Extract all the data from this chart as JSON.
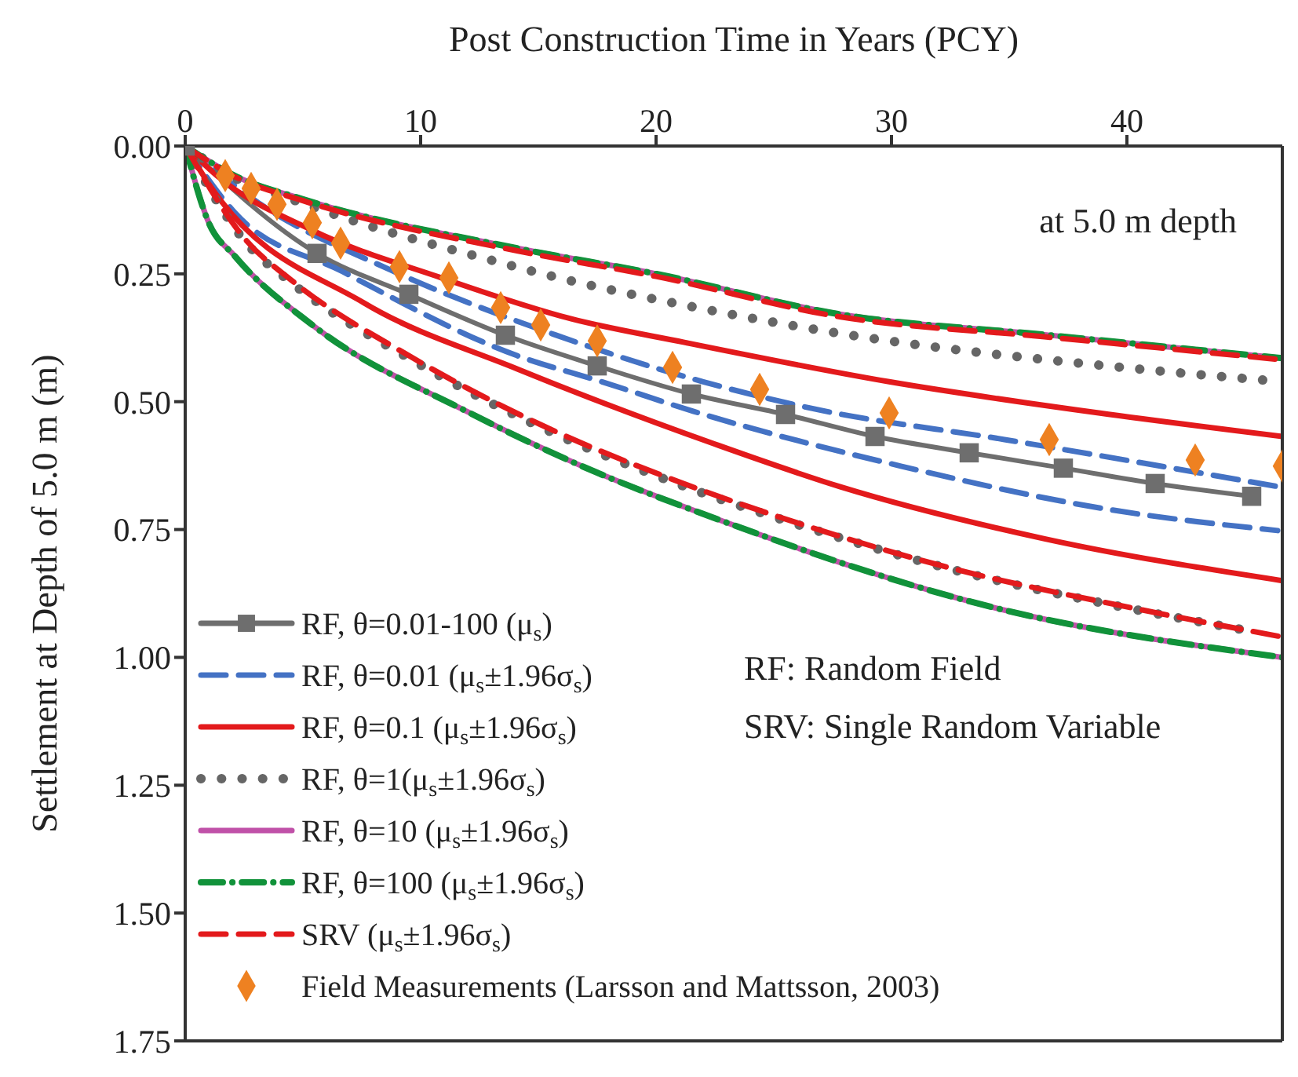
{
  "chart_data": {
    "type": "line",
    "xlabel": "Post Construction Time in Years (PCY)",
    "ylabel": "Settlement at Depth of 5.0 m  (m)",
    "xlim": [
      0,
      46.6
    ],
    "xticks": [
      0,
      10,
      20,
      30,
      40
    ],
    "ylim": [
      1.75,
      0
    ],
    "yticks": [
      {
        "value": 0,
        "label": "0.00"
      },
      {
        "value": 0.25,
        "label": "0.25"
      },
      {
        "value": 0.5,
        "label": "0.50"
      },
      {
        "value": 0.75,
        "label": "0.75"
      },
      {
        "value": 1,
        "label": "1.00"
      },
      {
        "value": 1.25,
        "label": "1.25"
      },
      {
        "value": 1.5,
        "label": "1.50"
      },
      {
        "value": 1.75,
        "label": "1.75"
      }
    ],
    "legend": "bottom left",
    "annotations": [
      "at 5.0 m depth",
      "RF: Random Field",
      "SRV: Single Random Variable"
    ],
    "series": [
      {
        "name": "RF, θ=0.01-100 (μ$_{s}$)",
        "color": "#6e6e6e",
        "line_style": "solid",
        "marker": "square",
        "x": [
          0,
          5.6,
          9.5,
          13.6,
          17.5,
          21.5,
          25.5,
          29.3,
          33.3,
          37.3,
          41.2,
          45.3
        ],
        "values": [
          0,
          0.21,
          0.29,
          0.37,
          0.43,
          0.485,
          0.525,
          0.568,
          0.6,
          0.63,
          0.66,
          0.685
        ]
      },
      {
        "name": "RF, θ=0.01 (μ$_{s}$±1.96σ$_{s}$)",
        "color": "#4472c4",
        "line_style": "dashed",
        "marker": "none",
        "x": [
          0,
          3.2,
          8.7,
          15.7,
          22,
          26.6,
          34.8,
          46.4
        ],
        "values": [
          0,
          0.114,
          0.242,
          0.369,
          0.461,
          0.513,
          0.574,
          0.666
        ]
      },
      {
        "color": "#4472c4",
        "line_style": "dashed",
        "marker": "none",
        "x": [
          0,
          2.1,
          6.7,
          14.1,
          17.7,
          21.6,
          30.4,
          39.4,
          46.4
        ],
        "values": [
          0,
          0.13,
          0.246,
          0.41,
          0.461,
          0.519,
          0.626,
          0.712,
          0.752
        ]
      },
      {
        "name": "RF, θ=0.1 (μ$_{s}$±1.96σ$_{s}$)",
        "color": "#e31a1c",
        "line_style": "solid",
        "marker": "none",
        "x": [
          0,
          1.4,
          5.4,
          10.9,
          16.4,
          21.2,
          29.9,
          38.8,
          46.6
        ],
        "values": [
          0,
          0.06,
          0.165,
          0.258,
          0.338,
          0.384,
          0.461,
          0.522,
          0.568
        ]
      },
      {
        "color": "#e31a1c",
        "line_style": "solid",
        "marker": "none",
        "x": [
          0,
          1,
          7.6,
          14.1,
          22.5,
          27.8,
          36.5,
          46.6
        ],
        "values": [
          0,
          0.074,
          0.307,
          0.436,
          0.583,
          0.666,
          0.768,
          0.85
        ]
      },
      {
        "name": "RF, θ=1(μ$_{s}$±1.96σ$_{s}$)",
        "color": "#666666",
        "line_style": "dotted",
        "marker": "none",
        "x": [
          0,
          2,
          4.5,
          7,
          13.3,
          15.1,
          21.4,
          28,
          39.8,
          46.4
        ],
        "values": [
          0,
          0.06,
          0.104,
          0.144,
          0.227,
          0.249,
          0.313,
          0.368,
          0.433,
          0.46
        ]
      },
      {
        "color": "#666666",
        "line_style": "dotted",
        "marker": "none",
        "x": [
          0,
          2.6,
          4.5,
          9.5,
          15.1,
          20.7,
          26.2,
          32.4,
          40.3,
          45.3
        ],
        "values": [
          0,
          0.19,
          0.267,
          0.415,
          0.55,
          0.657,
          0.743,
          0.826,
          0.906,
          0.949
        ]
      },
      {
        "name": "RF, θ=10 (μ$_{s}$±1.96σ$_{s}$)",
        "color": "#c051a8",
        "line_style": "solid",
        "marker": "none",
        "x": [
          0,
          2.1,
          5,
          14.1,
          20,
          27.8,
          36.5,
          46.6
        ],
        "values": [
          0,
          0.058,
          0.104,
          0.2,
          0.25,
          0.329,
          0.369,
          0.415
        ]
      },
      {
        "color": "#c051a8",
        "line_style": "solid",
        "marker": "none",
        "x": [
          0,
          1,
          2.1,
          5.4,
          12,
          16.8,
          22.5,
          34.3,
          46.6
        ],
        "values": [
          0,
          0.15,
          0.215,
          0.35,
          0.52,
          0.625,
          0.728,
          0.902,
          1
        ]
      },
      {
        "name": "RF, θ=100 (μ$_{s}$±1.96σ$_{s}$)",
        "color": "#11923a",
        "line_style": "dashdot",
        "marker": "none",
        "x": [
          0,
          2.1,
          5,
          14.1,
          20,
          27.8,
          36.5,
          46.6
        ],
        "values": [
          0,
          0.058,
          0.104,
          0.2,
          0.25,
          0.329,
          0.369,
          0.415
        ]
      },
      {
        "color": "#11923a",
        "line_style": "dashdot",
        "marker": "none",
        "x": [
          0,
          1,
          2.1,
          5.4,
          12,
          16.8,
          22.5,
          34.3,
          46.6
        ],
        "values": [
          0,
          0.15,
          0.215,
          0.35,
          0.52,
          0.625,
          0.728,
          0.902,
          1
        ]
      },
      {
        "name": "SRV (μ$_{s}$±1.96σ$_{s}$)",
        "color": "#e31a1c",
        "line_style": "dashed",
        "marker": "none",
        "x": [
          0,
          2.1,
          5,
          14.1,
          20,
          27.8,
          36.5,
          46.6
        ],
        "values": [
          0,
          0.06,
          0.107,
          0.205,
          0.255,
          0.334,
          0.373,
          0.418
        ]
      },
      {
        "color": "#e31a1c",
        "line_style": "dashed",
        "marker": "none",
        "x": [
          0,
          2.6,
          4.5,
          9.5,
          15.1,
          20.7,
          26.2,
          32.4,
          40.3,
          46.6
        ],
        "values": [
          0,
          0.185,
          0.262,
          0.41,
          0.545,
          0.652,
          0.74,
          0.824,
          0.904,
          0.96
        ]
      },
      {
        "name": "Field Measurements (Larsson and Mattsson, 2003)",
        "type": "scatter",
        "color": "#ee8121",
        "marker": "diamond",
        "x": [
          1.7,
          2.8,
          3.9,
          5.4,
          6.6,
          9.1,
          11.2,
          13.4,
          15.1,
          17.5,
          20.7,
          24.4,
          29.9,
          36.7,
          42.9,
          46.6
        ],
        "values": [
          0.058,
          0.083,
          0.114,
          0.15,
          0.19,
          0.236,
          0.258,
          0.316,
          0.35,
          0.381,
          0.433,
          0.476,
          0.522,
          0.574,
          0.614,
          0.626
        ]
      }
    ]
  }
}
